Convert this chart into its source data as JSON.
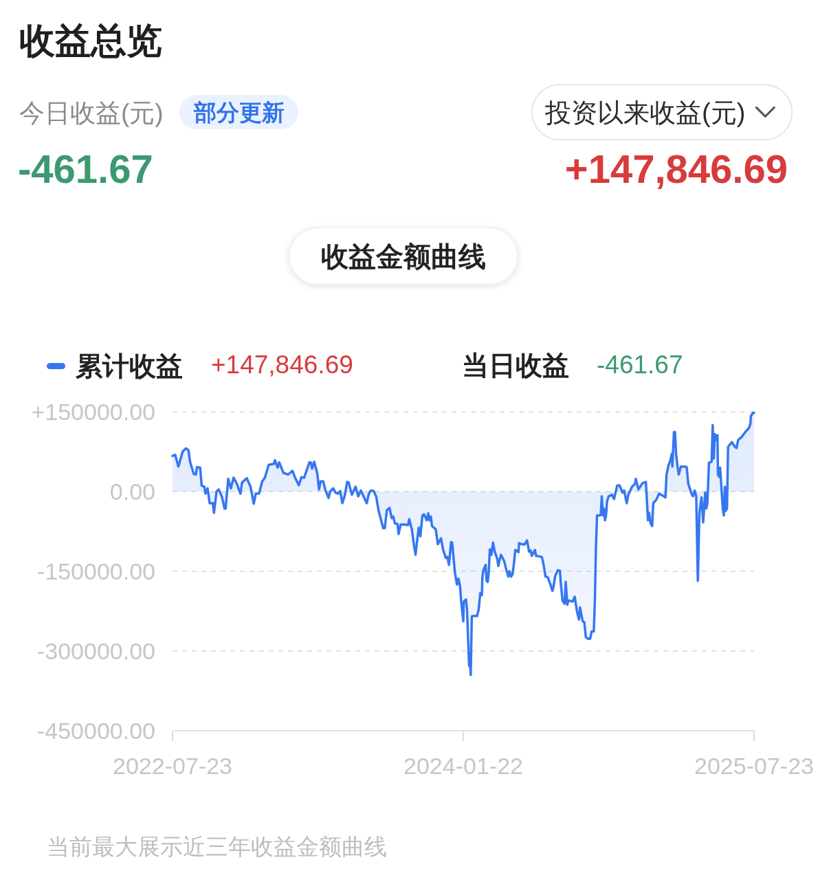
{
  "chart_data": {
    "type": "area",
    "title": "收益总览",
    "annotations": [
      "今日收益(元)",
      "部分更新",
      "-461.67",
      "投资以来收益(元)",
      "+147,846.69",
      "收益金额曲线",
      "+147,846.69",
      "当日收益",
      "-461.67",
      "当前最大展示近三年收益金额曲线"
    ],
    "xlim": [
      "2022-07-23",
      "2025-07-23"
    ],
    "xticks": [
      "2022-07-23",
      "2024-01-22",
      "2025-07-23"
    ],
    "ylim": [
      -450000,
      150000
    ],
    "yticks": [
      {
        "value": -450000,
        "label": "-450000.00"
      },
      {
        "value": -300000,
        "label": "-300000.00"
      },
      {
        "value": -150000,
        "label": "-150000.00"
      },
      {
        "value": 0,
        "label": "0.00"
      },
      {
        "value": 150000,
        "label": "+150000.00"
      }
    ],
    "grid": "y",
    "legend": "top left",
    "line_style": "solid",
    "x": [
      "2022-07-23",
      "2022-07-28",
      "2022-08-03",
      "2022-08-11",
      "2022-08-17",
      "2022-08-22",
      "2022-08-25",
      "2022-09-01",
      "2022-09-05",
      "2022-09-07",
      "2022-09-13",
      "2022-09-16",
      "2022-09-21",
      "2022-09-23",
      "2022-09-27",
      "2022-10-01",
      "2022-10-07",
      "2022-10-09",
      "2022-10-14",
      "2022-10-18",
      "2022-10-24",
      "2022-10-29",
      "2022-10-31",
      "2022-11-05",
      "2022-11-10",
      "2022-11-15",
      "2022-11-21",
      "2022-11-28",
      "2022-12-01",
      "2022-12-10",
      "2022-12-17",
      "2022-12-23",
      "2022-12-27",
      "2023-01-02",
      "2023-01-08",
      "2023-01-13",
      "2023-01-19",
      "2023-01-20",
      "2023-01-30",
      "2023-02-01",
      "2023-02-06",
      "2023-02-09",
      "2023-02-17",
      "2023-02-26",
      "2023-03-06",
      "2023-03-11",
      "2023-03-18",
      "2023-03-23",
      "2023-03-28",
      "2023-04-07",
      "2023-04-10",
      "2023-04-12",
      "2023-04-16",
      "2023-04-22",
      "2023-04-25",
      "2023-04-28",
      "2023-05-03",
      "2023-05-07",
      "2023-05-13",
      "2023-05-16",
      "2023-05-22",
      "2023-05-26",
      "2023-05-31",
      "2023-06-04",
      "2023-06-08",
      "2023-06-13",
      "2023-06-17",
      "2023-06-20",
      "2023-06-26",
      "2023-06-29",
      "2023-07-03",
      "2023-07-08",
      "2023-07-13",
      "2023-07-18",
      "2023-07-24",
      "2023-07-28",
      "2023-08-01",
      "2023-08-06",
      "2023-08-11",
      "2023-08-15",
      "2023-08-19",
      "2023-08-24",
      "2023-08-27",
      "2023-08-31",
      "2023-09-05",
      "2023-09-09",
      "2023-09-12",
      "2023-09-15",
      "2023-09-20",
      "2023-09-22",
      "2023-09-26",
      "2023-10-02",
      "2023-10-10",
      "2023-10-12",
      "2023-10-17",
      "2023-10-21",
      "2023-10-24",
      "2023-10-26",
      "2023-10-30",
      "2023-11-02",
      "2023-11-06",
      "2023-11-09",
      "2023-11-14",
      "2023-11-17",
      "2023-11-19",
      "2023-11-22",
      "2023-11-24",
      "2023-12-01",
      "2023-12-05",
      "2023-12-11",
      "2023-12-15",
      "2023-12-20",
      "2023-12-23",
      "2023-12-26",
      "2023-12-30",
      "2024-01-01",
      "2024-01-06",
      "2024-01-10",
      "2024-01-13",
      "2024-01-16",
      "2024-01-18",
      "2024-01-22",
      "2024-01-23",
      "2024-01-27",
      "2024-01-29",
      "2024-02-01",
      "2024-02-02",
      "2024-02-03",
      "2024-02-05",
      "2024-02-07",
      "2024-02-10",
      "2024-02-17",
      "2024-02-20",
      "2024-02-23",
      "2024-02-26",
      "2024-02-27",
      "2024-02-29",
      "2024-03-04",
      "2024-03-06",
      "2024-03-08",
      "2024-03-10",
      "2024-03-12",
      "2024-03-15",
      "2024-03-18",
      "2024-03-21",
      "2024-03-26",
      "2024-03-28",
      "2024-03-30",
      "2024-04-02",
      "2024-04-08",
      "2024-04-12",
      "2024-04-16",
      "2024-04-18",
      "2024-04-21",
      "2024-04-24",
      "2024-04-27",
      "2024-04-29",
      "2024-05-05",
      "2024-05-06",
      "2024-05-11",
      "2024-05-16",
      "2024-05-21",
      "2024-05-25",
      "2024-05-28",
      "2024-05-30",
      "2024-06-05",
      "2024-06-07",
      "2024-06-18",
      "2024-06-21",
      "2024-06-25",
      "2024-06-29",
      "2024-07-05",
      "2024-07-08",
      "2024-07-10",
      "2024-07-13",
      "2024-07-18",
      "2024-07-22",
      "2024-07-24",
      "2024-07-27",
      "2024-07-31",
      "2024-08-02",
      "2024-08-05",
      "2024-08-07",
      "2024-08-15",
      "2024-08-19",
      "2024-08-23",
      "2024-08-27",
      "2024-08-29",
      "2024-09-03",
      "2024-09-06",
      "2024-09-09",
      "2024-09-13",
      "2024-09-17",
      "2024-09-20",
      "2024-09-24",
      "2024-09-26",
      "2024-09-28",
      "2024-09-30",
      "2024-10-04",
      "2024-10-07",
      "2024-10-09",
      "2024-10-11",
      "2024-10-13",
      "2024-10-15",
      "2024-10-17",
      "2024-10-19",
      "2024-10-22",
      "2024-10-28",
      "2024-11-01",
      "2024-11-05",
      "2024-11-07",
      "2024-11-11",
      "2024-11-14",
      "2024-11-17",
      "2024-11-20",
      "2024-11-25",
      "2024-11-28",
      "2024-12-05",
      "2024-12-11",
      "2024-12-12",
      "2024-12-17",
      "2024-12-25",
      "2024-12-31",
      "2025-01-02",
      "2025-01-04",
      "2025-01-06",
      "2025-01-09",
      "2025-01-12",
      "2025-01-14",
      "2025-01-20",
      "2025-01-25",
      "2025-02-06",
      "2025-02-08",
      "2025-02-12",
      "2025-02-15",
      "2025-02-18",
      "2025-02-19",
      "2025-02-22",
      "2025-02-24",
      "2025-02-26",
      "2025-03-01",
      "2025-03-03",
      "2025-03-07",
      "2025-03-14",
      "2025-03-18",
      "2025-03-21",
      "2025-03-27",
      "2025-03-30",
      "2025-04-02",
      "2025-04-05",
      "2025-04-08",
      "2025-04-11",
      "2025-04-15",
      "2025-04-18",
      "2025-04-22",
      "2025-04-24",
      "2025-04-26",
      "2025-04-29",
      "2025-05-04",
      "2025-05-06",
      "2025-05-08",
      "2025-05-10",
      "2025-05-13",
      "2025-05-15",
      "2025-05-16",
      "2025-05-18",
      "2025-05-20",
      "2025-05-25",
      "2025-05-27",
      "2025-05-29",
      "2025-05-30",
      "2025-06-02",
      "2025-06-04",
      "2025-06-11",
      "2025-06-17",
      "2025-06-20",
      "2025-06-23",
      "2025-06-29",
      "2025-07-05",
      "2025-07-10",
      "2025-07-13",
      "2025-07-16",
      "2025-07-17",
      "2025-07-21",
      "2025-07-23"
    ],
    "series": [
      {
        "name": "累计收益",
        "color": "#3677f0",
        "values": [
          67000,
          69000,
          47000,
          75000,
          81000,
          78000,
          56000,
          33000,
          32000,
          46000,
          45000,
          11000,
          9000,
          -4000,
          6000,
          -22000,
          -22000,
          -40000,
          0,
          4000,
          -10000,
          -32000,
          -32000,
          24000,
          6000,
          26000,
          15000,
          -4000,
          17000,
          25000,
          9000,
          -23000,
          -4000,
          -4000,
          19000,
          26000,
          46000,
          50000,
          52000,
          59000,
          45000,
          55000,
          35000,
          32000,
          39000,
          26000,
          12000,
          27000,
          26000,
          55000,
          54000,
          43000,
          56000,
          33000,
          4000,
          19000,
          19000,
          3000,
          -12000,
          0,
          6000,
          -2000,
          -4000,
          1000,
          -22000,
          -6000,
          18000,
          17000,
          -6000,
          0,
          9000,
          -9000,
          2000,
          -9000,
          -22000,
          -4000,
          2000,
          1000,
          -10000,
          -35000,
          -50000,
          -69000,
          -69000,
          -35000,
          -31000,
          -50000,
          -47000,
          -60000,
          -61000,
          -80000,
          -62000,
          -62000,
          -63000,
          -52000,
          -71000,
          -101000,
          -119000,
          -101000,
          -68000,
          -84000,
          -45000,
          -43000,
          -54000,
          -41000,
          -54000,
          -47000,
          -65000,
          -71000,
          -99000,
          -88000,
          -110000,
          -125000,
          -123000,
          -138000,
          -95000,
          -96000,
          -151000,
          -175000,
          -164000,
          -179000,
          -207000,
          -244000,
          -207000,
          -203000,
          -222000,
          -302000,
          -328000,
          -304000,
          -345000,
          -235000,
          -234000,
          -234000,
          -222000,
          -191000,
          -195000,
          -160000,
          -148000,
          -138000,
          -168000,
          -170000,
          -151000,
          -109000,
          -119000,
          -96000,
          -112000,
          -127000,
          -140000,
          -131000,
          -119000,
          -131000,
          -147000,
          -160000,
          -150000,
          -160000,
          -155000,
          -131000,
          -110000,
          -114000,
          -97000,
          -99000,
          -100000,
          -92000,
          -113000,
          -111000,
          -121000,
          -110000,
          -121000,
          -123000,
          -136000,
          -160000,
          -161000,
          -177000,
          -187000,
          -179000,
          -160000,
          -148000,
          -149000,
          -175000,
          -205000,
          -211000,
          -170000,
          -213000,
          -205000,
          -207000,
          -198000,
          -224000,
          -241000,
          -218000,
          -244000,
          -246000,
          -274000,
          -277000,
          -277000,
          -263000,
          -263000,
          -205000,
          -106000,
          -45000,
          -45000,
          -44000,
          -9000,
          -45000,
          -32000,
          -54000,
          -45000,
          -18000,
          -9000,
          -6000,
          -14000,
          2000,
          11000,
          12000,
          6000,
          -2000,
          2000,
          -22000,
          -6000,
          9000,
          15000,
          24000,
          4000,
          16000,
          18000,
          -15000,
          -54000,
          -40000,
          -60000,
          -65000,
          -22000,
          -15000,
          -4000,
          -11000,
          32000,
          50000,
          58000,
          71000,
          47000,
          112000,
          112000,
          71000,
          45000,
          32000,
          47000,
          47000,
          46000,
          15000,
          -4000,
          -9000,
          2000,
          -9000,
          -168000,
          -41000,
          -11000,
          -58000,
          -2000,
          -32000,
          -22000,
          54000,
          56000,
          125000,
          62000,
          108000,
          97000,
          106000,
          32000,
          28000,
          45000,
          -32000,
          -45000,
          9000,
          -37000,
          -32000,
          84000,
          93000,
          84000,
          82000,
          97000,
          102000,
          110000,
          116000,
          119000,
          127000,
          142000,
          148000,
          148000
        ]
      }
    ]
  }
}
